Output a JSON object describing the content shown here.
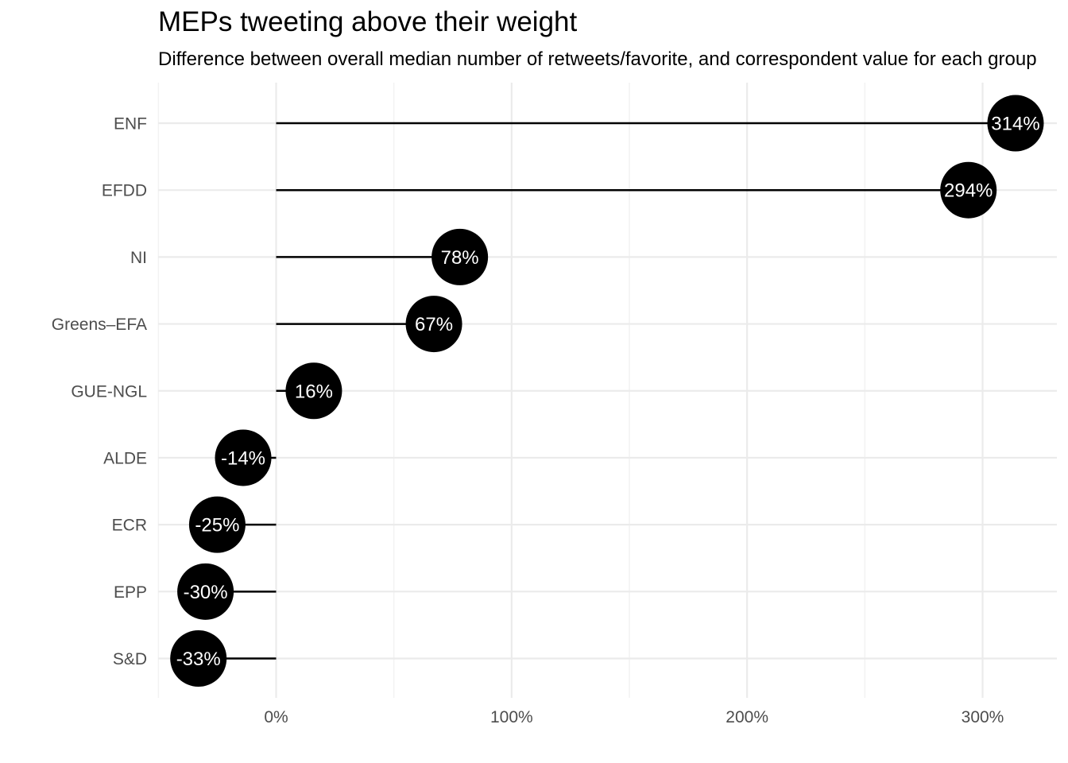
{
  "chart_data": {
    "type": "lollipop",
    "title": "MEPs tweeting above their weight",
    "subtitle": "Difference between overall median number of retweets/favorite, and correspondent value for each group",
    "categories": [
      "ENF",
      "EFDD",
      "NI",
      "Greens–EFA",
      "GUE-NGL",
      "ALDE",
      "ECR",
      "EPP",
      "S&D"
    ],
    "values": [
      314,
      294,
      78,
      67,
      16,
      -14,
      -25,
      -30,
      -33
    ],
    "labels": [
      "314%",
      "294%",
      "78%",
      "67%",
      "16%",
      "-14%",
      "-25%",
      "-30%",
      "-33%"
    ],
    "x_ticks": [
      0,
      100,
      200,
      300
    ],
    "x_tick_labels": [
      "0%",
      "100%",
      "200%",
      "300%"
    ],
    "xlim": [
      -50,
      330
    ],
    "xlabel": "",
    "ylabel": "",
    "grid": true,
    "colors": {
      "bubble": "#000000",
      "bubble_text": "#ffffff",
      "segment": "#000000",
      "grid_major": "#ebebeb",
      "grid_minor": "#f2f2f2",
      "tick_text": "#4d4d4d"
    }
  }
}
